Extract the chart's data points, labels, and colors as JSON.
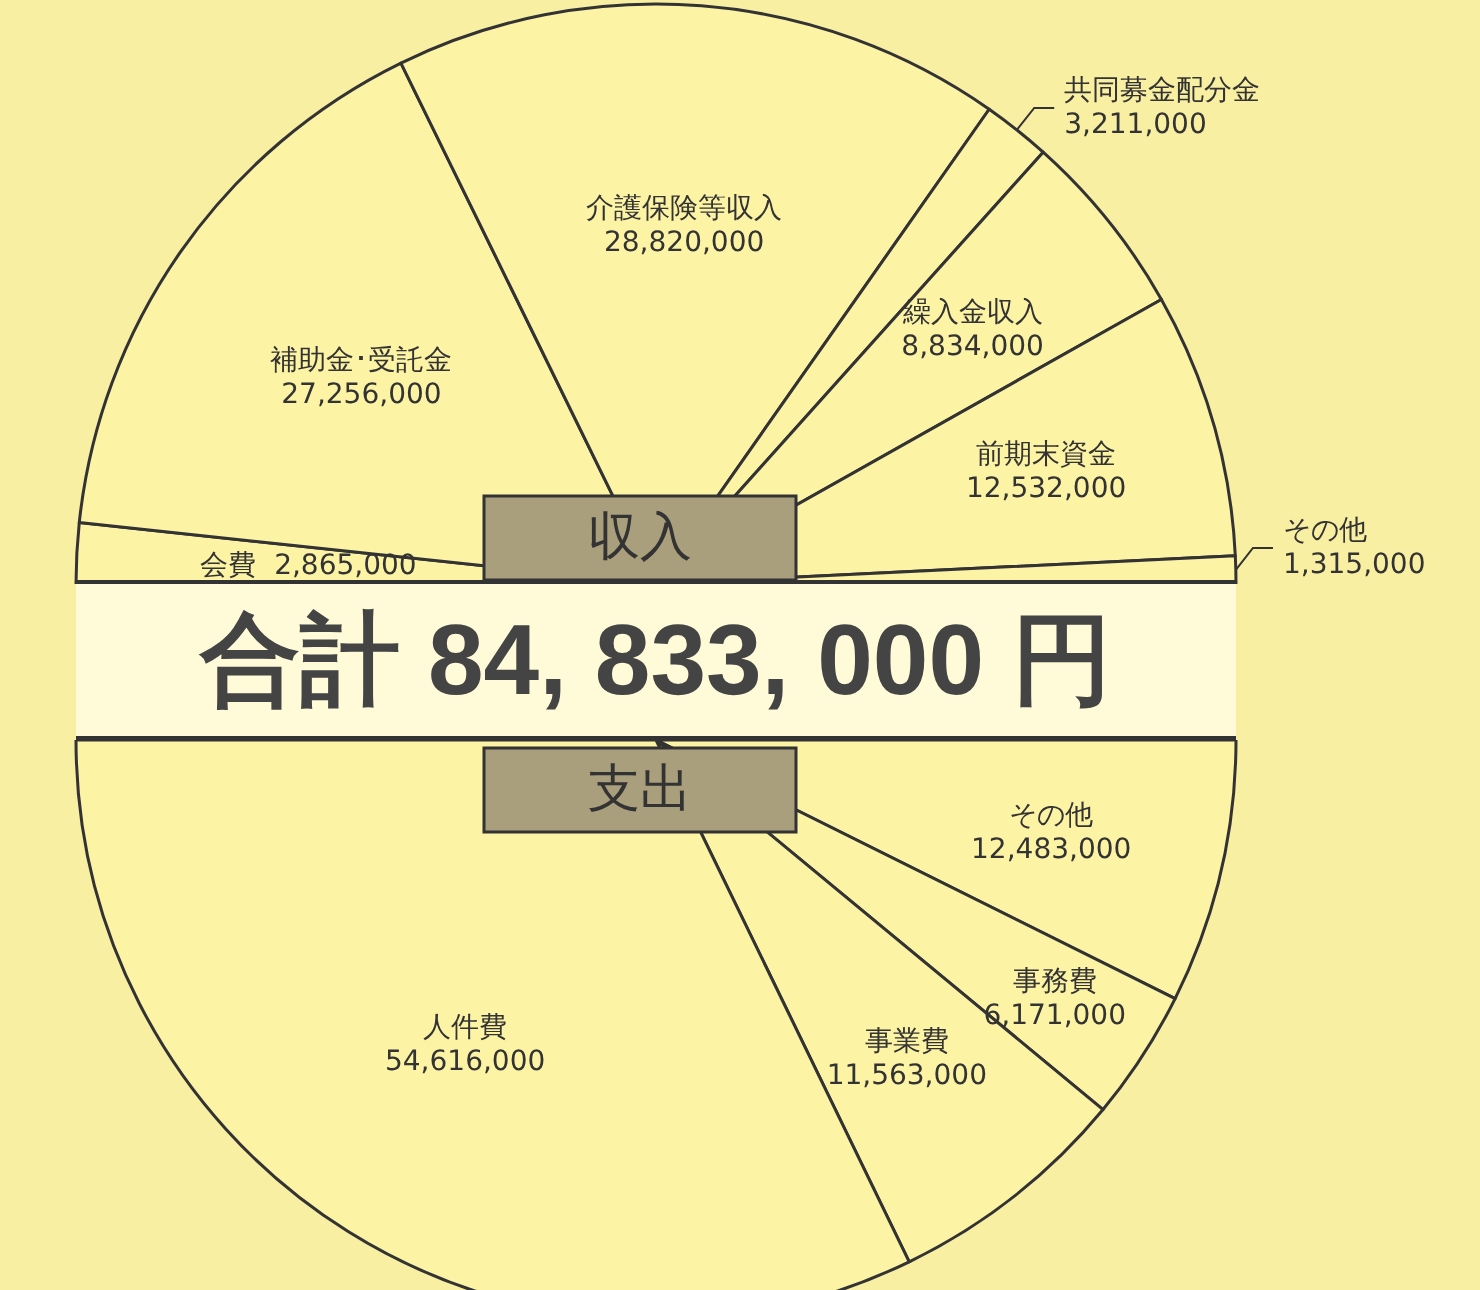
{
  "chart_data": [
    {
      "type": "pie",
      "title": "収入",
      "annotations": [
        "合計 84, 833, 000 円"
      ],
      "categories": [
        "会費",
        "補助金･受託金",
        "介護保険等収入",
        "共同募金配分金",
        "繰入金収入",
        "前期末資金",
        "その他"
      ],
      "values": [
        2865000,
        27256000,
        28820000,
        3211000,
        8834000,
        12532000,
        1315000
      ],
      "colors": [
        "#fcf3a4",
        "#fcf3a4",
        "#fcf3a4",
        "#fcf3a4",
        "#fcf3a4",
        "#fcf3a4",
        "#fcf3a4"
      ],
      "value_labels": [
        "2,865,000",
        "27,256,000",
        "28,820,000",
        "3,211,000",
        "8,834,000",
        "12,532,000",
        "1,315,000"
      ],
      "legend": false
    },
    {
      "type": "pie",
      "title": "支出",
      "categories": [
        "その他",
        "事務費",
        "事業費",
        "人件費"
      ],
      "values": [
        12483000,
        6171000,
        11563000,
        54616000
      ],
      "colors": [
        "#fcf3a4",
        "#fcf3a4",
        "#fcf3a4",
        "#fcf3a4"
      ],
      "value_labels": [
        "12,483,000",
        "6,171,000",
        "11,563,000",
        "54,616,000"
      ],
      "legend": false
    }
  ]
}
